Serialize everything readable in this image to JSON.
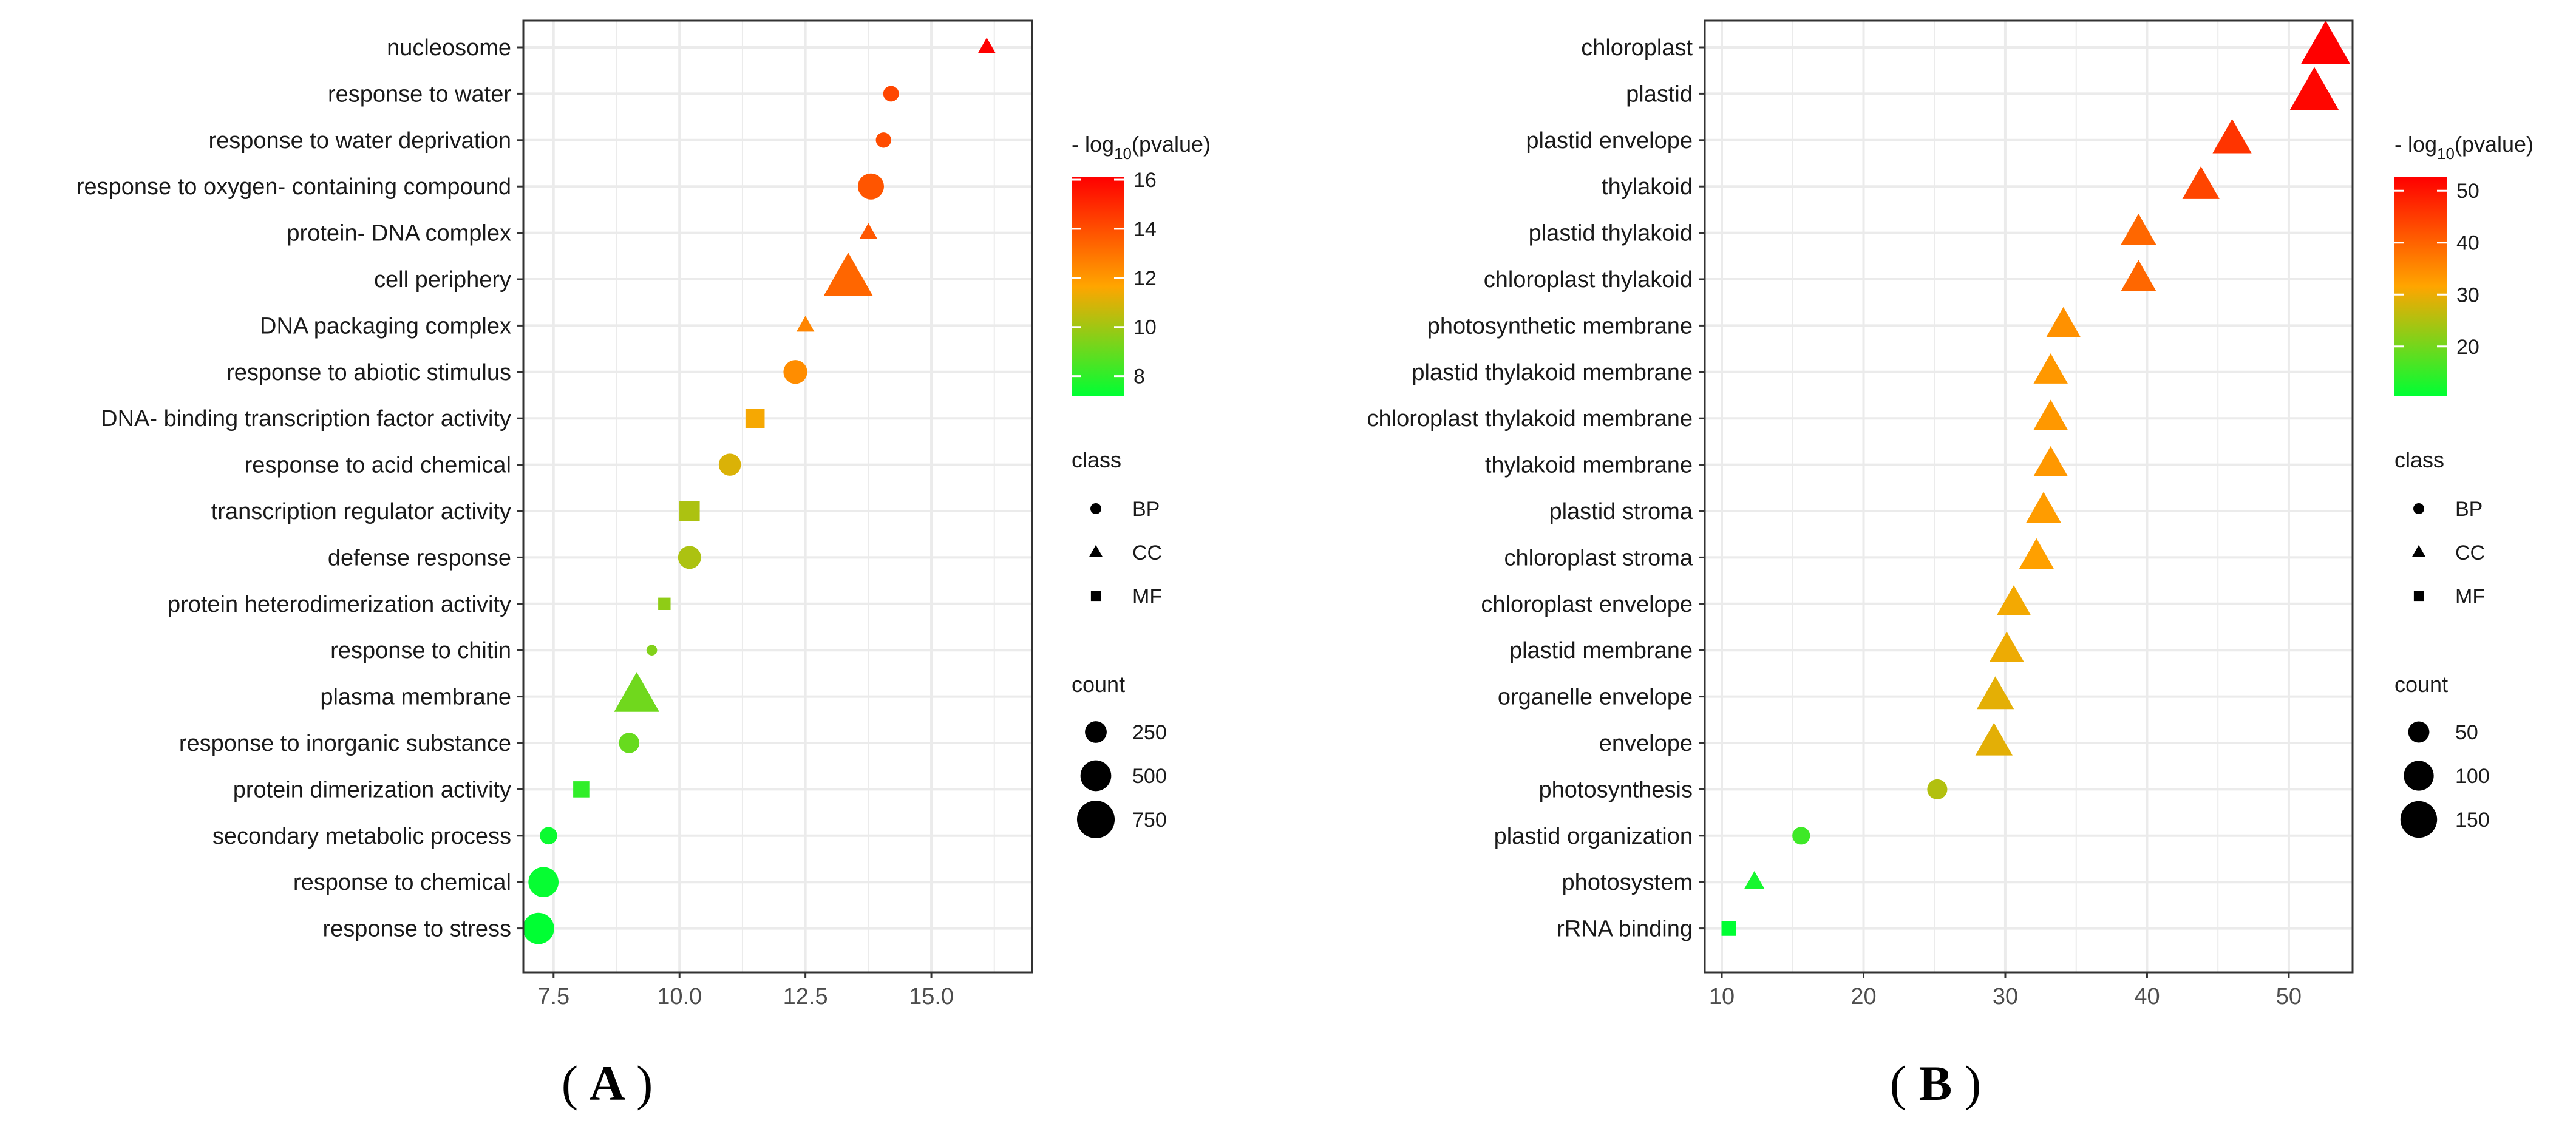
{
  "chart_data": [
    {
      "panel": "A",
      "type": "scatter",
      "xlim": [
        6.9,
        17.0
      ],
      "xticks": [
        7.5,
        10.0,
        12.5,
        15.0
      ],
      "xtick_labels": [
        "7.5",
        "10.0",
        "12.5",
        "15.0"
      ],
      "xlabel": "",
      "ylabel": "",
      "grid": true,
      "color_scale": {
        "min": 7.2,
        "max": 16.1,
        "colors": [
          "#00ff33",
          "#ffa500",
          "#ff0000"
        ]
      },
      "size_scale": {
        "min": 0,
        "max": 900
      },
      "legend": {
        "color_title_prefix": "- log",
        "color_title_sub": "10",
        "color_title_suffix": "(pvalue)",
        "color_ticks": [
          16,
          14,
          12,
          10,
          8
        ],
        "color_tick_labels": [
          "16",
          "14",
          "12",
          "10",
          "8"
        ],
        "class_title": "class",
        "class_items": [
          {
            "label": "BP",
            "shape": "circle"
          },
          {
            "label": "CC",
            "shape": "triangle"
          },
          {
            "label": "MF",
            "shape": "square"
          }
        ],
        "count_title": "count",
        "count_values": [
          250,
          500,
          750
        ],
        "count_labels": [
          "250",
          "500",
          "750"
        ]
      },
      "points": [
        {
          "term": "nucleosome",
          "value": 16.1,
          "class": "CC",
          "count": 110
        },
        {
          "term": "response to water",
          "value": 14.2,
          "class": "BP",
          "count": 130
        },
        {
          "term": "response to water deprivation",
          "value": 14.05,
          "class": "BP",
          "count": 125
        },
        {
          "term": "response to oxygen- containing compound",
          "value": 13.8,
          "class": "BP",
          "count": 360
        },
        {
          "term": "protein- DNA complex",
          "value": 13.75,
          "class": "CC",
          "count": 110
        },
        {
          "term": "cell periphery",
          "value": 13.35,
          "class": "CC",
          "count": 820
        },
        {
          "term": "DNA packaging complex",
          "value": 12.5,
          "class": "CC",
          "count": 110
        },
        {
          "term": "response to abiotic stimulus",
          "value": 12.3,
          "class": "BP",
          "count": 300
        },
        {
          "term": "DNA- binding transcription factor activity",
          "value": 11.5,
          "class": "MF",
          "count": 240
        },
        {
          "term": "response to acid chemical",
          "value": 11.0,
          "class": "BP",
          "count": 260
        },
        {
          "term": "transcription regulator activity",
          "value": 10.2,
          "class": "MF",
          "count": 270
        },
        {
          "term": "defense response",
          "value": 10.2,
          "class": "BP",
          "count": 280
        },
        {
          "term": "protein heterodimerization activity",
          "value": 9.7,
          "class": "MF",
          "count": 100
        },
        {
          "term": "response to chitin",
          "value": 9.45,
          "class": "BP",
          "count": 60
        },
        {
          "term": "plasma membrane",
          "value": 9.15,
          "class": "CC",
          "count": 700
        },
        {
          "term": "response to inorganic substance",
          "value": 9.0,
          "class": "BP",
          "count": 220
        },
        {
          "term": "protein dimerization activity",
          "value": 8.05,
          "class": "MF",
          "count": 170
        },
        {
          "term": "secondary metabolic process",
          "value": 7.4,
          "class": "BP",
          "count": 160
        },
        {
          "term": "response to chemical",
          "value": 7.3,
          "class": "BP",
          "count": 480
        },
        {
          "term": "response to stress",
          "value": 7.2,
          "class": "BP",
          "count": 520
        }
      ]
    },
    {
      "panel": "B",
      "type": "scatter",
      "xlim": [
        8.8,
        54.5
      ],
      "xticks": [
        10,
        20,
        30,
        40,
        50
      ],
      "xtick_labels": [
        "10",
        "20",
        "30",
        "40",
        "50"
      ],
      "xlabel": "",
      "ylabel": "",
      "grid": true,
      "color_scale": {
        "min": 10.5,
        "max": 52.6,
        "colors": [
          "#00ff33",
          "#ffa500",
          "#ff0000"
        ]
      },
      "size_scale": {
        "min": 0,
        "max": 190
      },
      "legend": {
        "color_title_prefix": "- log",
        "color_title_sub": "10",
        "color_title_suffix": "(pvalue)",
        "color_ticks": [
          50,
          40,
          30,
          20
        ],
        "color_tick_labels": [
          "50",
          "40",
          "30",
          "20"
        ],
        "class_title": "class",
        "class_items": [
          {
            "label": "BP",
            "shape": "circle"
          },
          {
            "label": "CC",
            "shape": "triangle"
          },
          {
            "label": "MF",
            "shape": "square"
          }
        ],
        "count_title": "count",
        "count_values": [
          50,
          100,
          150
        ],
        "count_labels": [
          "50",
          "100",
          "150"
        ]
      },
      "points": [
        {
          "term": "chloroplast",
          "value": 52.6,
          "class": "CC",
          "count": 175
        },
        {
          "term": "plastid",
          "value": 51.8,
          "class": "CC",
          "count": 175
        },
        {
          "term": "plastid envelope",
          "value": 46.0,
          "class": "CC",
          "count": 110
        },
        {
          "term": "thylakoid",
          "value": 43.8,
          "class": "CC",
          "count": 100
        },
        {
          "term": "plastid thylakoid",
          "value": 39.4,
          "class": "CC",
          "count": 90
        },
        {
          "term": "chloroplast thylakoid",
          "value": 39.4,
          "class": "CC",
          "count": 90
        },
        {
          "term": "photosynthetic membrane",
          "value": 34.1,
          "class": "CC",
          "count": 85
        },
        {
          "term": "plastid thylakoid membrane",
          "value": 33.2,
          "class": "CC",
          "count": 85
        },
        {
          "term": "chloroplast thylakoid membrane",
          "value": 33.2,
          "class": "CC",
          "count": 85
        },
        {
          "term": "thylakoid membrane",
          "value": 33.2,
          "class": "CC",
          "count": 85
        },
        {
          "term": "plastid stroma",
          "value": 32.7,
          "class": "CC",
          "count": 90
        },
        {
          "term": "chloroplast stroma",
          "value": 32.2,
          "class": "CC",
          "count": 90
        },
        {
          "term": "chloroplast envelope",
          "value": 30.6,
          "class": "CC",
          "count": 85
        },
        {
          "term": "plastid membrane",
          "value": 30.1,
          "class": "CC",
          "count": 85
        },
        {
          "term": "organelle envelope",
          "value": 29.3,
          "class": "CC",
          "count": 100
        },
        {
          "term": "envelope",
          "value": 29.2,
          "class": "CC",
          "count": 100
        },
        {
          "term": "photosynthesis",
          "value": 25.2,
          "class": "BP",
          "count": 45
        },
        {
          "term": "plastid organization",
          "value": 15.6,
          "class": "BP",
          "count": 35
        },
        {
          "term": "photosystem",
          "value": 12.3,
          "class": "CC",
          "count": 30
        },
        {
          "term": "rRNA binding",
          "value": 10.5,
          "class": "MF",
          "count": 30
        }
      ]
    }
  ],
  "panel_labels": [
    {
      "open": "(",
      "letter": "A",
      "close": ")"
    },
    {
      "open": "(",
      "letter": "B",
      "close": ")"
    }
  ]
}
